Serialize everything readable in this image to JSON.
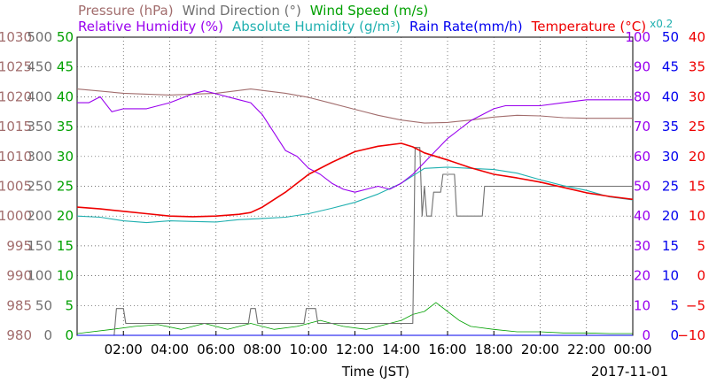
{
  "chart_data": {
    "type": "line",
    "date_label": "2017-11-01",
    "xlabel": "Time (JST)",
    "x_tick_labels": [
      "02:00",
      "04:00",
      "06:00",
      "08:00",
      "10:00",
      "12:00",
      "14:00",
      "16:00",
      "18:00",
      "20:00",
      "22:00",
      "00:00"
    ],
    "x_ticks_hours": [
      2,
      4,
      6,
      8,
      10,
      12,
      14,
      16,
      18,
      20,
      22,
      24
    ],
    "x_range_hours": [
      0,
      24
    ],
    "grid": true,
    "legend": {
      "row1": [
        {
          "key": "pressure",
          "text": "Pressure (hPa)"
        },
        {
          "key": "wind_direction",
          "text": "Wind Direction (°)"
        },
        {
          "key": "wind_speed",
          "text": "Wind Speed (m/s)"
        }
      ],
      "row2": [
        {
          "key": "relative_humidity",
          "text": "Relative Humidity (%)"
        },
        {
          "key": "absolute_humidity",
          "text": "Absolute Humidity (g/m³)"
        },
        {
          "key": "rain_rate",
          "text": "Rain Rate(mm/h)"
        },
        {
          "key": "temperature",
          "text": "Temperature (°C)"
        }
      ],
      "scale_note": "x0.2"
    },
    "axes": {
      "pressure": {
        "range": [
          980,
          1030
        ],
        "ticks": [
          "980",
          "985",
          "990",
          "995",
          "1000",
          "1005",
          "1010",
          "1015",
          "1020",
          "1025",
          "1030"
        ],
        "color": "#a26d6d"
      },
      "wind_direction": {
        "range": [
          0,
          500
        ],
        "ticks": [
          "0",
          "50",
          "100",
          "150",
          "200",
          "250",
          "300",
          "350",
          "400",
          "450",
          "500"
        ],
        "color": "#707070"
      },
      "wind_speed": {
        "range": [
          0,
          50
        ],
        "ticks": [
          "0",
          "5",
          "10",
          "15",
          "20",
          "25",
          "30",
          "35",
          "40",
          "45",
          "50"
        ],
        "color": "#00a000"
      },
      "relative_humidity": {
        "range": [
          0,
          100
        ],
        "ticks": [
          "0",
          "10",
          "20",
          "30",
          "40",
          "50",
          "60",
          "70",
          "80",
          "90",
          "100"
        ],
        "color": "#9900ee"
      },
      "rain_rate": {
        "range": [
          0,
          50
        ],
        "ticks": [
          "0",
          "5",
          "10",
          "15",
          "20",
          "25",
          "30",
          "35",
          "40",
          "45",
          "50"
        ],
        "color": "#0000ee"
      },
      "temperature": {
        "range": [
          -10,
          40
        ],
        "ticks": [
          "−10",
          "−5",
          "0",
          "5",
          "10",
          "15",
          "20",
          "25",
          "30",
          "35",
          "40"
        ],
        "color": "#ee0000"
      }
    },
    "series": [
      {
        "name": "Pressure (hPa)",
        "key": "pressure",
        "axis": "pressure",
        "color": "#a26d6d",
        "x": [
          0,
          2,
          4,
          6,
          7.5,
          9,
          10,
          11,
          12,
          13,
          14,
          15,
          16,
          17,
          18,
          19,
          20,
          21,
          22,
          23,
          24
        ],
        "y": [
          1021.3,
          1020.6,
          1020.3,
          1020.6,
          1021.3,
          1020.6,
          1019.9,
          1018.9,
          1017.9,
          1016.9,
          1016.1,
          1015.6,
          1015.7,
          1016.1,
          1016.6,
          1016.9,
          1016.8,
          1016.5,
          1016.4,
          1016.4,
          1016.4
        ]
      },
      {
        "name": "Relative Humidity (%)",
        "key": "relative_humidity",
        "axis": "relative_humidity",
        "color": "#9900ee",
        "x": [
          0,
          0.5,
          1,
          1.5,
          2,
          3,
          4,
          5,
          5.5,
          6,
          7,
          7.5,
          8,
          8.5,
          9,
          9.5,
          10,
          10.5,
          11,
          11.5,
          12,
          12.5,
          13,
          13.5,
          14,
          14.5,
          15,
          15.5,
          16,
          16.5,
          17,
          17.5,
          18,
          18.5,
          19,
          20,
          21,
          22,
          23,
          24
        ],
        "y": [
          78,
          78,
          80,
          75,
          76,
          76,
          78,
          81,
          82,
          81,
          79,
          78,
          74,
          68,
          62,
          60,
          56,
          54,
          51,
          49,
          48,
          49,
          50,
          49,
          51,
          54,
          58,
          62,
          66,
          69,
          72,
          74,
          76,
          77,
          77,
          77,
          78,
          79,
          79,
          79
        ]
      },
      {
        "name": "Absolute Humidity (g/m³)",
        "key": "absolute_humidity",
        "axis": "absolute_humidity",
        "color": "#20b0b0",
        "x": [
          0,
          1,
          2,
          3,
          4,
          5,
          6,
          7,
          8,
          9,
          10,
          11,
          12,
          13,
          14,
          15,
          16,
          17,
          18,
          19,
          20,
          21,
          22,
          23,
          24
        ],
        "y": [
          20,
          19.8,
          19.2,
          18.9,
          19.2,
          19.1,
          19.0,
          19.4,
          19.6,
          19.8,
          20.4,
          21.3,
          22.3,
          23.7,
          25.5,
          28,
          28.2,
          28,
          27.8,
          27.2,
          26.1,
          25.1,
          24.3,
          23.2,
          22.7
        ]
      },
      {
        "name": "Temperature (°C)",
        "key": "temperature",
        "axis": "temperature",
        "color": "#ee0000",
        "x": [
          0,
          1,
          2,
          3,
          4,
          5,
          6,
          7,
          7.5,
          8,
          9,
          10,
          11,
          12,
          13,
          14,
          14.5,
          15,
          16,
          17,
          18,
          19,
          20,
          21,
          22,
          23,
          24
        ],
        "y": [
          11.5,
          11.2,
          10.8,
          10.4,
          10,
          9.9,
          10,
          10.3,
          10.6,
          11.5,
          14,
          17,
          19,
          20.8,
          21.7,
          22.2,
          21.6,
          20.6,
          19.4,
          18.1,
          17,
          16.4,
          15.7,
          14.8,
          13.9,
          13.3,
          12.8
        ]
      },
      {
        "name": "Wind Direction (°)",
        "key": "wind_direction",
        "axis": "wind_direction",
        "color": "#707070",
        "x": [
          0,
          1.6,
          1.7,
          2.0,
          2.1,
          7.4,
          7.5,
          7.7,
          7.8,
          9.8,
          9.9,
          10.3,
          10.4,
          11.6,
          11.7,
          12.2,
          12.3,
          12.9,
          13.0,
          14.5,
          14.6,
          14.8,
          14.9,
          15.0,
          15.1,
          15.3,
          15.4,
          15.7,
          15.8,
          16.3,
          16.4,
          16.9,
          17.0,
          17.5,
          17.6,
          24
        ],
        "y": [
          0,
          0,
          45,
          45,
          20,
          20,
          45,
          45,
          20,
          20,
          45,
          45,
          20,
          20,
          20,
          20,
          20,
          20,
          20,
          20,
          315,
          315,
          200,
          250,
          200,
          200,
          240,
          240,
          270,
          270,
          200,
          200,
          200,
          200,
          250,
          250
        ]
      },
      {
        "name": "Wind Speed (m/s)",
        "key": "wind_speed",
        "axis": "wind_speed",
        "color": "#00a000",
        "x": [
          0,
          1.5,
          2.5,
          3.5,
          4.5,
          5.5,
          6.5,
          7.5,
          8.5,
          9.5,
          10.5,
          11.5,
          12.5,
          13.5,
          14,
          14.5,
          15,
          15.5,
          16,
          16.5,
          17,
          18,
          19,
          20,
          21,
          22,
          23,
          24
        ],
        "y": [
          0.3,
          1,
          1.5,
          1.8,
          1,
          2,
          1,
          2,
          1,
          1.5,
          2.5,
          1.5,
          1,
          2,
          2.5,
          3.5,
          4,
          5.5,
          4,
          2.5,
          1.5,
          1,
          0.6,
          0.6,
          0.4,
          0.4,
          0.3,
          0.3
        ]
      },
      {
        "name": "Rain Rate(mm/h)",
        "key": "rain_rate",
        "axis": "rain_rate",
        "color": "#0000ee",
        "x": [
          0,
          24
        ],
        "y": [
          0,
          0
        ]
      }
    ]
  }
}
